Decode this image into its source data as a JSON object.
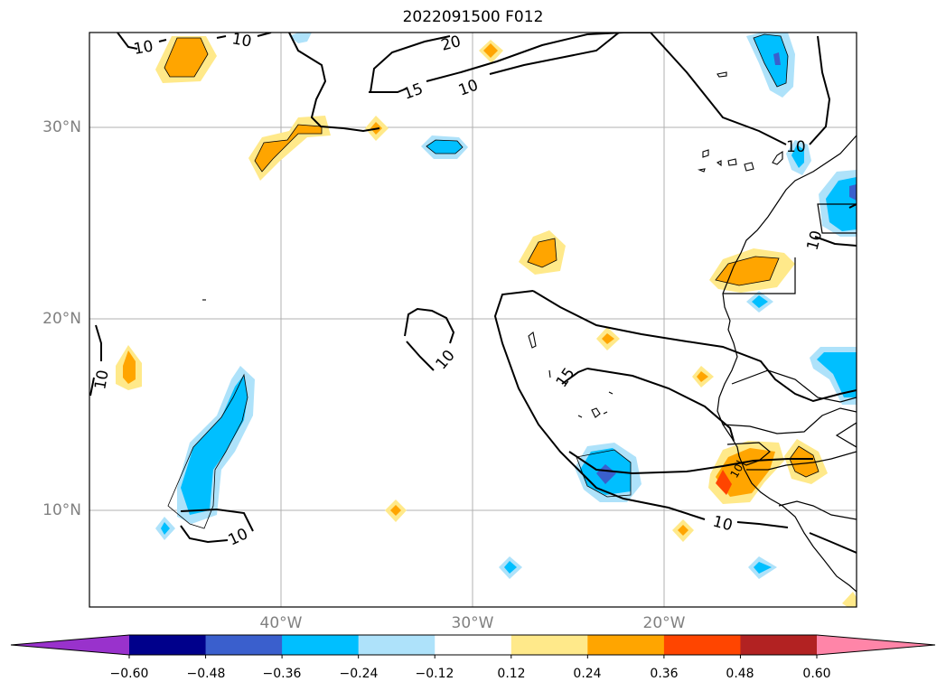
{
  "title": "2022091500 F012",
  "map": {
    "lat_labels": [
      "30°N",
      "20°N",
      "10°N"
    ],
    "lon_labels": [
      "40°W",
      "30°W",
      "20°W"
    ],
    "contour_labels": [
      "10",
      "10",
      "20",
      "15",
      "10",
      "10",
      "10",
      "10",
      "10",
      "10",
      "15",
      "10",
      "10"
    ]
  },
  "colorbar": {
    "ticks": [
      "−0.60",
      "−0.48",
      "−0.36",
      "−0.24",
      "−0.12",
      "0.12",
      "0.24",
      "0.36",
      "0.48",
      "0.60"
    ],
    "colors": [
      "#9932cc",
      "#00008b",
      "#3a5fcd",
      "#00bfff",
      "#aee2fa",
      "#ffffff",
      "#ffe98a",
      "#ffa500",
      "#ff4500",
      "#b22222",
      "#ff85a8"
    ]
  },
  "colors": {
    "pos_light": "#ffe98a",
    "pos_mid": "#ffa500",
    "pos_strong": "#ff4500",
    "neg_light": "#aee2fa",
    "neg_mid": "#00bfff",
    "neg_strong": "#3a5fcd",
    "grid": "#b0b0b0",
    "axis_label": "#808080"
  }
}
